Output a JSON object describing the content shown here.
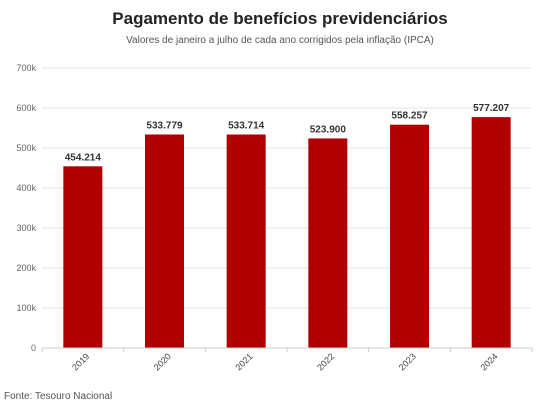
{
  "chart_data": {
    "type": "bar",
    "title": "Pagamento de benefícios previdenciários",
    "subtitle": "Valores de janeiro a julho de cada ano corrigidos pela inflação (IPCA)",
    "categories": [
      "2019",
      "2020",
      "2021",
      "2022",
      "2023",
      "2024"
    ],
    "values": [
      454214,
      533779,
      533714,
      523900,
      558257,
      577207
    ],
    "value_labels": [
      "454.214",
      "533.779",
      "533.714",
      "523.900",
      "558.257",
      "577.207"
    ],
    "y_ticks": [
      0,
      100000,
      200000,
      300000,
      400000,
      500000,
      600000,
      700000
    ],
    "y_tick_labels": [
      "0",
      "100k",
      "200k",
      "300k",
      "400k",
      "500k",
      "600k",
      "700k"
    ],
    "ylim": [
      0,
      700000
    ],
    "xlabel": "",
    "ylabel": "",
    "grid": true,
    "bar_color": "#b00000",
    "source": "Fonte: Tesouro Nacional"
  }
}
